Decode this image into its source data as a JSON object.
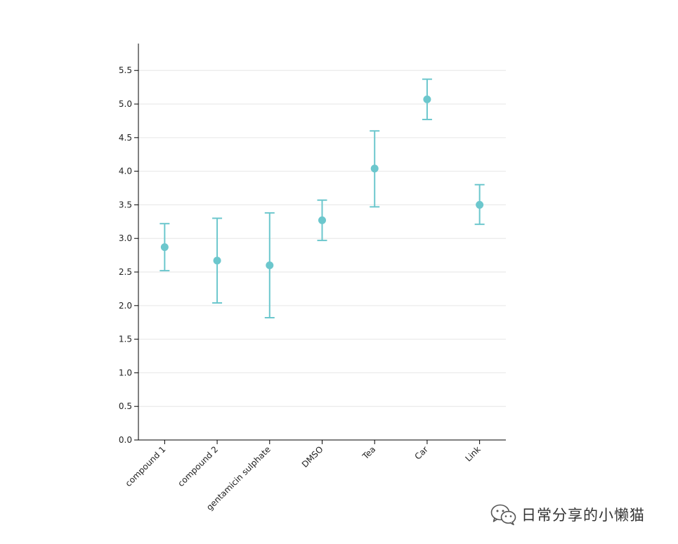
{
  "chart_data": {
    "type": "scatter",
    "subtype": "error-bar",
    "title": "",
    "xlabel": "",
    "ylabel": "",
    "ylim": [
      0,
      5.9
    ],
    "yticks": [
      "0.0",
      "0.5",
      "1.0",
      "1.5",
      "2.0",
      "2.5",
      "3.0",
      "3.5",
      "4.0",
      "4.5",
      "5.0",
      "5.5"
    ],
    "grid": "horizontal",
    "color": "#6cc7cd",
    "categories": [
      "compound 1",
      "compound 2",
      "gentamicin sulphate",
      "DMSO",
      "Tea",
      "Car",
      "Link"
    ],
    "values": [
      2.87,
      2.67,
      2.6,
      3.27,
      4.04,
      5.07,
      3.5
    ],
    "lower": [
      2.52,
      2.04,
      1.82,
      2.97,
      3.47,
      4.77,
      3.21
    ],
    "upper": [
      3.22,
      3.3,
      3.38,
      3.57,
      4.6,
      5.37,
      3.8
    ]
  },
  "watermark": {
    "icon": "wechat-icon",
    "text": "日常分享的小懒猫"
  }
}
